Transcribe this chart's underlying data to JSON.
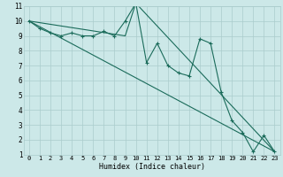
{
  "title": "",
  "xlabel": "Humidex (Indice chaleur)",
  "bg_color": "#cce8e8",
  "grid_color": "#aacccc",
  "line_color": "#1a6b5a",
  "xlim": [
    -0.5,
    23.5
  ],
  "ylim": [
    1,
    11
  ],
  "xticks": [
    0,
    1,
    2,
    3,
    4,
    5,
    6,
    7,
    8,
    9,
    10,
    11,
    12,
    13,
    14,
    15,
    16,
    17,
    18,
    19,
    20,
    21,
    22,
    23
  ],
  "yticks": [
    1,
    2,
    3,
    4,
    5,
    6,
    7,
    8,
    9,
    10,
    11
  ],
  "series1_x": [
    0,
    1,
    2,
    3,
    4,
    5,
    6,
    7,
    8,
    9,
    10,
    11,
    12,
    13,
    14,
    15,
    16,
    17,
    18,
    19,
    20,
    21,
    22,
    23
  ],
  "series1_y": [
    10.0,
    9.5,
    9.2,
    9.0,
    9.2,
    9.0,
    9.0,
    9.3,
    9.0,
    10.0,
    11.2,
    7.2,
    8.5,
    7.0,
    6.5,
    6.3,
    8.8,
    8.5,
    5.2,
    3.3,
    2.5,
    1.2,
    2.3,
    1.2
  ],
  "series2_x": [
    0,
    9,
    10,
    23
  ],
  "series2_y": [
    10.0,
    9.0,
    11.2,
    1.2
  ],
  "series3_x": [
    0,
    23
  ],
  "series3_y": [
    10.0,
    1.2
  ],
  "xlabel_fontsize": 6,
  "tick_fontsize": 5,
  "lw": 0.8,
  "marker_size": 3
}
